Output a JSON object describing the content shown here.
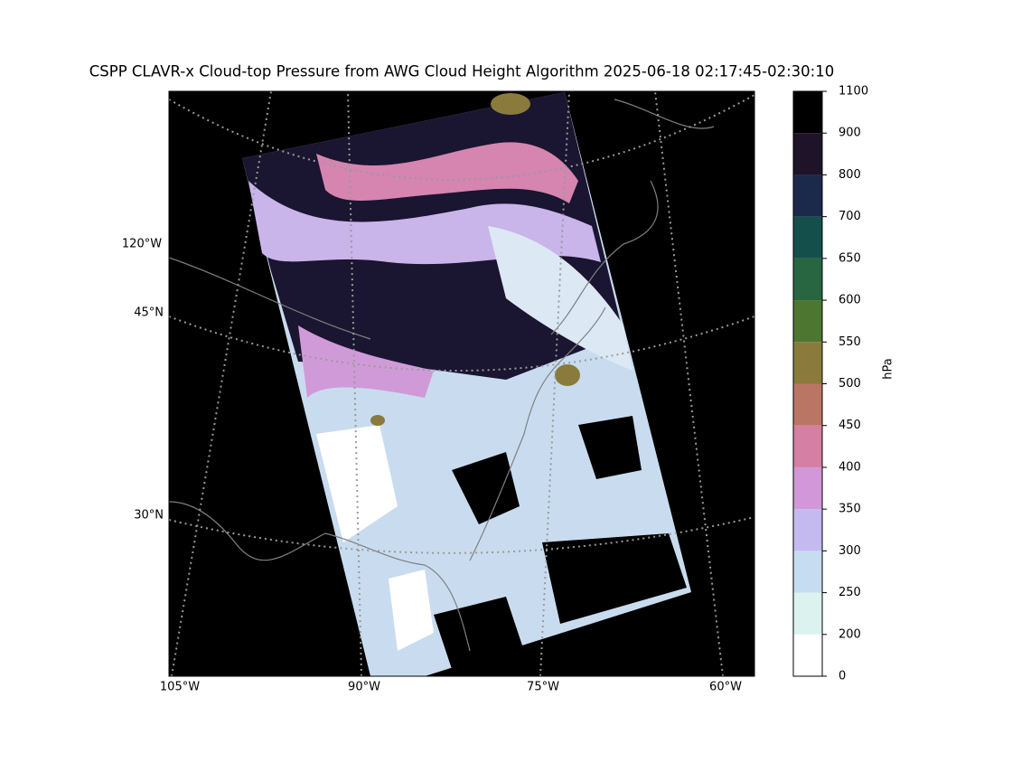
{
  "title": "CSPP CLAVR-x Cloud-top Pressure from AWG Cloud Height Algorithm 2025-06-18 02:17:45-02:30:10",
  "map": {
    "longitude_labels": [
      "120°W",
      "105°W",
      "90°W",
      "75°W",
      "60°W"
    ],
    "latitude_labels": [
      "45°N",
      "30°N"
    ]
  },
  "colorbar": {
    "label": "hPa",
    "ticks": [
      0,
      200,
      250,
      300,
      350,
      400,
      450,
      500,
      550,
      600,
      650,
      700,
      800,
      900,
      1100
    ],
    "colors": [
      "#ffffff",
      "#dcf2ee",
      "#c6dcf0",
      "#c4baf0",
      "#d297d8",
      "#d47fa3",
      "#bb7565",
      "#8a7b3c",
      "#4d7631",
      "#276641",
      "#154f4c",
      "#1b2a4b",
      "#1e1328",
      "#000000"
    ]
  }
}
